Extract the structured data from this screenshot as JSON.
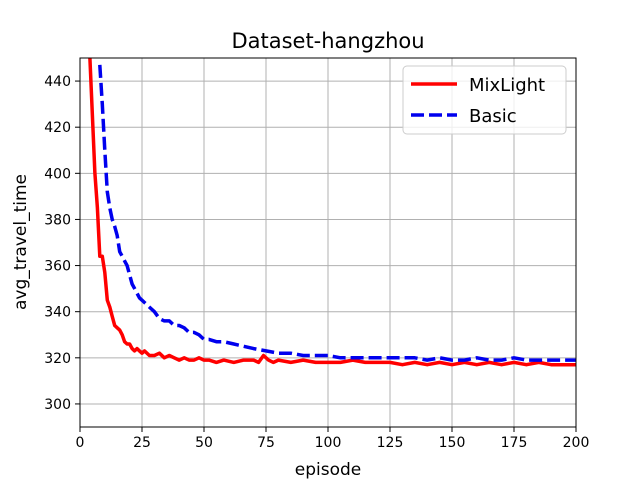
{
  "chart_data": {
    "type": "line",
    "title": "Dataset-hangzhou",
    "xlabel": "episode",
    "ylabel": "avg_travel_time",
    "xlim": [
      0,
      200
    ],
    "ylim": [
      290,
      450
    ],
    "xticks": [
      0,
      25,
      50,
      75,
      100,
      125,
      150,
      175,
      200
    ],
    "yticks": [
      300,
      320,
      340,
      360,
      380,
      400,
      420,
      440
    ],
    "grid": true,
    "legend_position": "top-right",
    "series": [
      {
        "name": "MixLight",
        "color": "#ff0000",
        "dash": "solid",
        "x": [
          4,
          5,
          6,
          7,
          8,
          9,
          10,
          11,
          12,
          13,
          14,
          15,
          16,
          17,
          18,
          19,
          20,
          21,
          22,
          23,
          24,
          25,
          26,
          28,
          30,
          32,
          34,
          36,
          38,
          40,
          42,
          44,
          46,
          48,
          50,
          52,
          55,
          58,
          62,
          66,
          70,
          72,
          74,
          76,
          78,
          80,
          85,
          90,
          95,
          100,
          105,
          110,
          115,
          120,
          125,
          130,
          135,
          140,
          145,
          150,
          155,
          160,
          165,
          170,
          175,
          180,
          185,
          190,
          195,
          200
        ],
        "y": [
          450,
          425,
          400,
          385,
          364,
          364,
          357,
          345,
          342,
          338,
          334,
          333,
          332,
          330,
          327,
          326,
          326,
          324,
          323,
          324,
          323,
          322,
          323,
          321,
          321,
          322,
          320,
          321,
          320,
          319,
          320,
          319,
          319,
          320,
          319,
          319,
          318,
          319,
          318,
          319,
          319,
          318,
          321,
          319,
          318,
          319,
          318,
          319,
          318,
          318,
          318,
          319,
          318,
          318,
          318,
          317,
          318,
          317,
          318,
          317,
          318,
          317,
          318,
          317,
          318,
          317,
          318,
          317,
          317,
          317
        ]
      },
      {
        "name": "Basic",
        "color": "#0000ee",
        "dash": "dashed",
        "x": [
          8,
          9,
          10,
          11,
          12,
          13,
          14,
          15,
          16,
          17,
          18,
          19,
          20,
          21,
          22,
          23,
          24,
          25,
          26,
          28,
          30,
          32,
          34,
          36,
          38,
          40,
          42,
          44,
          46,
          48,
          50,
          52,
          55,
          58,
          62,
          66,
          70,
          75,
          80,
          85,
          90,
          95,
          100,
          105,
          110,
          115,
          120,
          125,
          130,
          135,
          140,
          145,
          150,
          155,
          160,
          165,
          170,
          175,
          180,
          185,
          190,
          195,
          200
        ],
        "y": [
          447,
          430,
          410,
          392,
          385,
          380,
          377,
          373,
          366,
          364,
          362,
          360,
          356,
          352,
          350,
          348,
          346,
          345,
          344,
          342,
          340,
          337,
          336,
          336,
          334,
          334,
          333,
          331,
          331,
          330,
          328,
          328,
          327,
          327,
          326,
          325,
          324,
          323,
          322,
          322,
          321,
          321,
          321,
          320,
          320,
          320,
          320,
          320,
          320,
          320,
          319,
          320,
          319,
          319,
          320,
          319,
          319,
          320,
          319,
          319,
          319,
          319,
          319
        ]
      }
    ]
  }
}
